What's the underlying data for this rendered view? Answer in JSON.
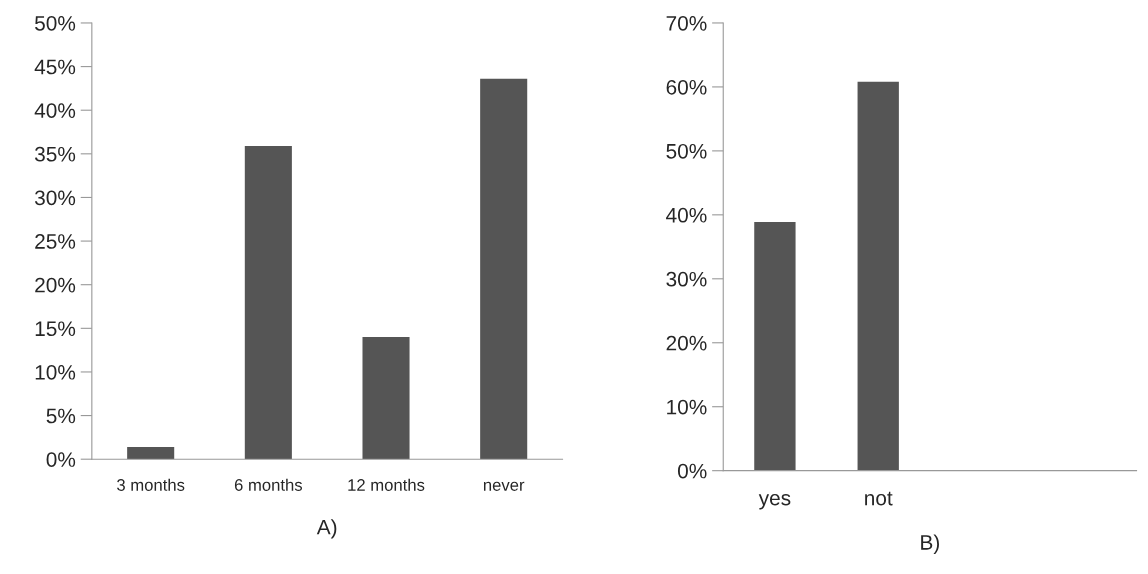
{
  "chart_data": [
    {
      "type": "bar",
      "xlabel": "A)",
      "categories": [
        "3 months",
        "6 months",
        "12 months",
        "never"
      ],
      "values": [
        1.4,
        35.9,
        14.0,
        43.6
      ],
      "color": "#555555",
      "ylim": [
        0,
        50
      ],
      "yticks": [
        {
          "value": 0,
          "label": "0%"
        },
        {
          "value": 5,
          "label": "5%"
        },
        {
          "value": 10,
          "label": "10%"
        },
        {
          "value": 15,
          "label": "15%"
        },
        {
          "value": 20,
          "label": "20%"
        },
        {
          "value": 25,
          "label": "25%"
        },
        {
          "value": 30,
          "label": "30%"
        },
        {
          "value": 35,
          "label": "35%"
        },
        {
          "value": 40,
          "label": "40%"
        },
        {
          "value": 45,
          "label": "45%"
        },
        {
          "value": 50,
          "label": "50%"
        }
      ],
      "grid": false,
      "legend": false
    },
    {
      "type": "bar",
      "xlabel": "B)",
      "categories": [
        "yes",
        "not",
        null,
        null
      ],
      "values": [
        38.9,
        60.8,
        null,
        null
      ],
      "color": "#555555",
      "ylim": [
        0,
        70
      ],
      "yticks": [
        {
          "value": 0,
          "label": "0%"
        },
        {
          "value": 10,
          "label": "10%"
        },
        {
          "value": 20,
          "label": "20%"
        },
        {
          "value": 30,
          "label": "30%"
        },
        {
          "value": 40,
          "label": "40%"
        },
        {
          "value": 50,
          "label": "50%"
        },
        {
          "value": 60,
          "label": "60%"
        },
        {
          "value": 70,
          "label": "70%"
        }
      ],
      "grid": false,
      "legend": false
    }
  ]
}
